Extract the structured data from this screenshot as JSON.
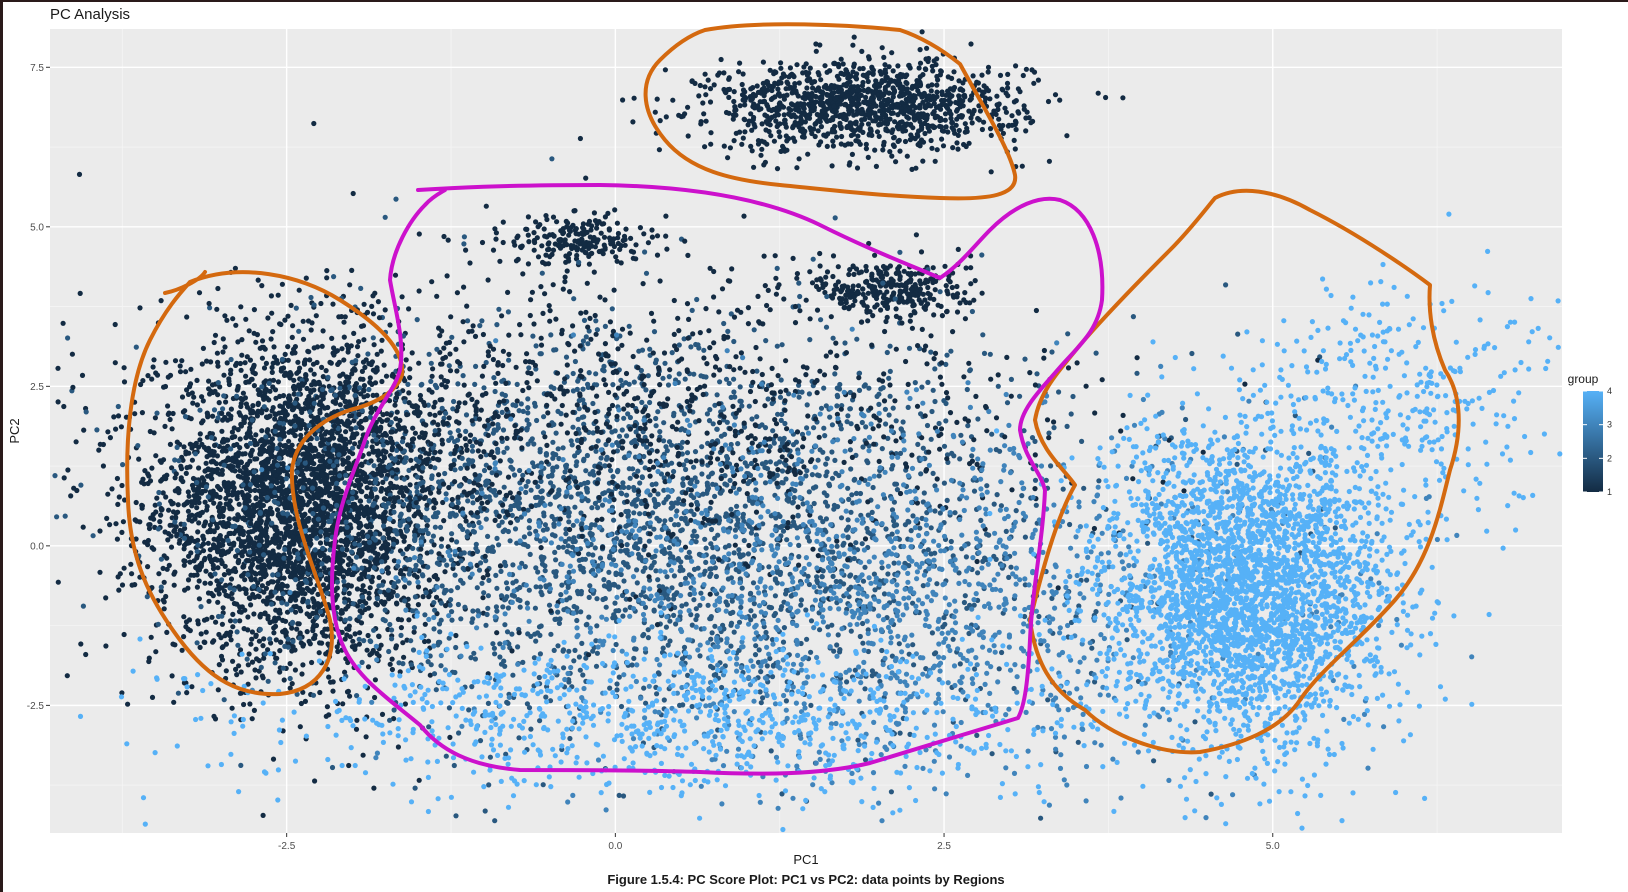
{
  "chart_data": {
    "type": "scatter",
    "title": "PC Analysis",
    "xlabel": "PC1",
    "ylabel": "PC2",
    "xlim": [
      -4.3,
      7.2
    ],
    "ylim": [
      -4.5,
      8.1
    ],
    "x_ticks": [
      -2.5,
      0.0,
      2.5,
      5.0
    ],
    "x_tick_labels": [
      "-2.5",
      "0.0",
      "2.5",
      "5.0"
    ],
    "y_ticks": [
      -2.5,
      0.0,
      2.5,
      5.0,
      7.5
    ],
    "y_tick_labels": [
      "-2.5",
      "0.0",
      "2.5",
      "5.0",
      "7.5"
    ],
    "grid": true,
    "caption": "Figure 1.5.4: PC Score Plot: PC1 vs PC2: data points by Regions",
    "legend": {
      "title": "group",
      "type": "colorbar",
      "position": "right",
      "range": [
        1,
        4
      ],
      "ticks": [
        1,
        2,
        3,
        4
      ],
      "tick_labels": [
        "1",
        "2",
        "3",
        "4"
      ],
      "low_color": "#132b43",
      "high_color": "#56b1f7"
    },
    "clusters": [
      {
        "group": 1,
        "center": [
          -2.4,
          0.6
        ],
        "spread": [
          0.55,
          1.25
        ],
        "approx_points": 3500
      },
      {
        "group": 1,
        "center": [
          1.9,
          6.9
        ],
        "spread": [
          0.6,
          0.35
        ],
        "approx_points": 1200
      },
      {
        "group": 1,
        "center": [
          2.1,
          4.0
        ],
        "spread": [
          0.3,
          0.25
        ],
        "approx_points": 300
      },
      {
        "group": 1,
        "center": [
          -0.3,
          4.8
        ],
        "spread": [
          0.25,
          0.2
        ],
        "approx_points": 200
      },
      {
        "group": 2,
        "center": [
          0.2,
          0.4
        ],
        "spread": [
          1.6,
          1.5
        ],
        "approx_points": 3000
      },
      {
        "group": 1,
        "center": [
          -0.2,
          2.0
        ],
        "spread": [
          1.8,
          1.2
        ],
        "approx_points": 1200
      },
      {
        "group": 3,
        "center": [
          2.0,
          -0.8
        ],
        "spread": [
          1.5,
          1.4
        ],
        "approx_points": 1500
      },
      {
        "group": 4,
        "center": [
          0.5,
          -2.7
        ],
        "spread": [
          1.6,
          0.6
        ],
        "approx_points": 900
      },
      {
        "group": 4,
        "center": [
          4.8,
          -0.7
        ],
        "spread": [
          0.55,
          1.2
        ],
        "approx_points": 3000
      },
      {
        "group": 4,
        "center": [
          6.0,
          2.2
        ],
        "spread": [
          0.6,
          1.0
        ],
        "approx_points": 350
      }
    ],
    "annotations": [
      {
        "shape": "freehand-outline",
        "color": "#d4690f",
        "region": "left cluster"
      },
      {
        "shape": "freehand-outline",
        "color": "#d4690f",
        "region": "top cluster"
      },
      {
        "shape": "freehand-outline",
        "color": "#d4690f",
        "region": "right cluster"
      },
      {
        "shape": "freehand-outline",
        "color": "#cc11cc",
        "region": "central cluster"
      }
    ]
  },
  "colors": {
    "panel_background": "#ebebeb",
    "gridline": "#ffffff",
    "orange_outline": "#d4690f",
    "magenta_outline": "#cc11cc"
  }
}
